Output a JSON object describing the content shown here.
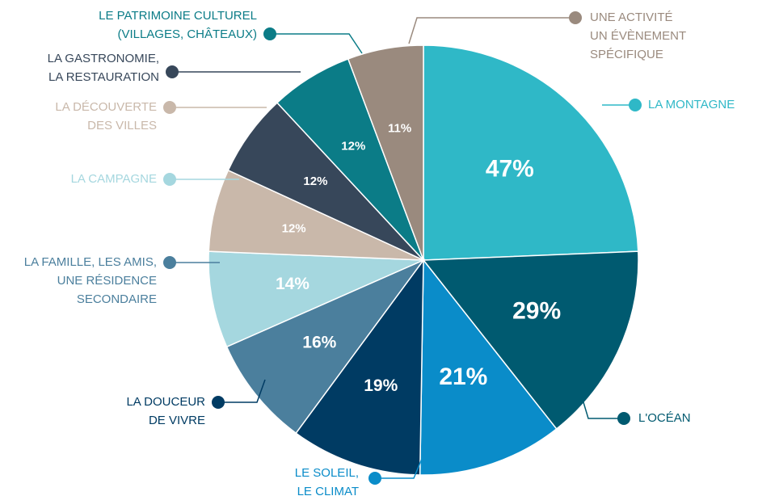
{
  "chart_data": {
    "type": "pie",
    "categories": [
      [
        "LA MONTAGNE"
      ],
      [
        "L'OCÉAN"
      ],
      [
        "LE SOLEIL,",
        "LE CLIMAT"
      ],
      [
        "LA DOUCEUR",
        "DE VIVRE"
      ],
      [
        "LA FAMILLE, LES AMIS,",
        "UNE RÉSIDENCE",
        "SECONDAIRE"
      ],
      [
        "LA CAMPAGNE"
      ],
      [
        "LA DÉCOUVERTE",
        "DES VILLES"
      ],
      [
        "LA GASTRONOMIE,",
        "LA RESTAURATION"
      ],
      [
        "LE PATRIMOINE CULTUREL",
        "(VILLAGES, CHÂTEAUX)"
      ],
      [
        "UNE ACTIVITÉ",
        "UN ÉVÈNEMENT",
        "SPÉCIFIQUE"
      ]
    ],
    "values": [
      47,
      29,
      21,
      19,
      16,
      14,
      12,
      12,
      12,
      11
    ],
    "value_labels": [
      "47%",
      "29%",
      "21%",
      "19%",
      "16%",
      "14%",
      "12%",
      "12%",
      "12%",
      "11%"
    ],
    "colors": [
      "#2fb8c7",
      "#005a70",
      "#0a8cc9",
      "#003b63",
      "#4b7f9d",
      "#a5d7df",
      "#c9b8aa",
      "#37475a",
      "#0b7c87",
      "#9a8a7e"
    ]
  }
}
